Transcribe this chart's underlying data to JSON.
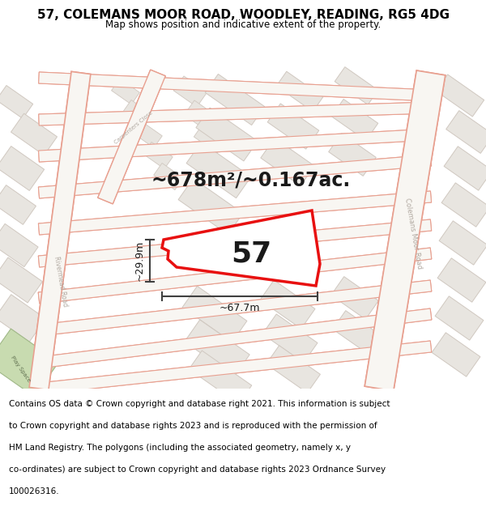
{
  "title": "57, COLEMANS MOOR ROAD, WOODLEY, READING, RG5 4DG",
  "subtitle": "Map shows position and indicative extent of the property.",
  "footer_lines": [
    "Contains OS data © Crown copyright and database right 2021. This information is subject",
    "to Crown copyright and database rights 2023 and is reproduced with the permission of",
    "HM Land Registry. The polygons (including the associated geometry, namely x, y",
    "co-ordinates) are subject to Crown copyright and database rights 2023 Ordnance Survey",
    "100026316."
  ],
  "area_label": "~678m²/~0.167ac.",
  "number_label": "57",
  "width_label": "~67.7m",
  "height_label": "~29.9m",
  "map_bg": "#f7f4f0",
  "road_line_color": "#e8a090",
  "road_line_color2": "#f0b8a8",
  "block_fill": "#e8e5e0",
  "block_edge": "#d0c8c0",
  "parcel_fill": "#ffffff",
  "parcel_edge": "#e8a090",
  "highlight_red": "#e81010",
  "prop_fill": "#ffffff",
  "green_fill": "#c8dbb0",
  "green_edge": "#a0b888",
  "dim_color": "#404040",
  "text_dark": "#1a1a1a",
  "text_road": "#b0a8a0",
  "title_fontsize": 11,
  "subtitle_fontsize": 8.5,
  "footer_fontsize": 7.5,
  "area_fontsize": 17,
  "num_fontsize": 26,
  "dim_fontsize": 9
}
